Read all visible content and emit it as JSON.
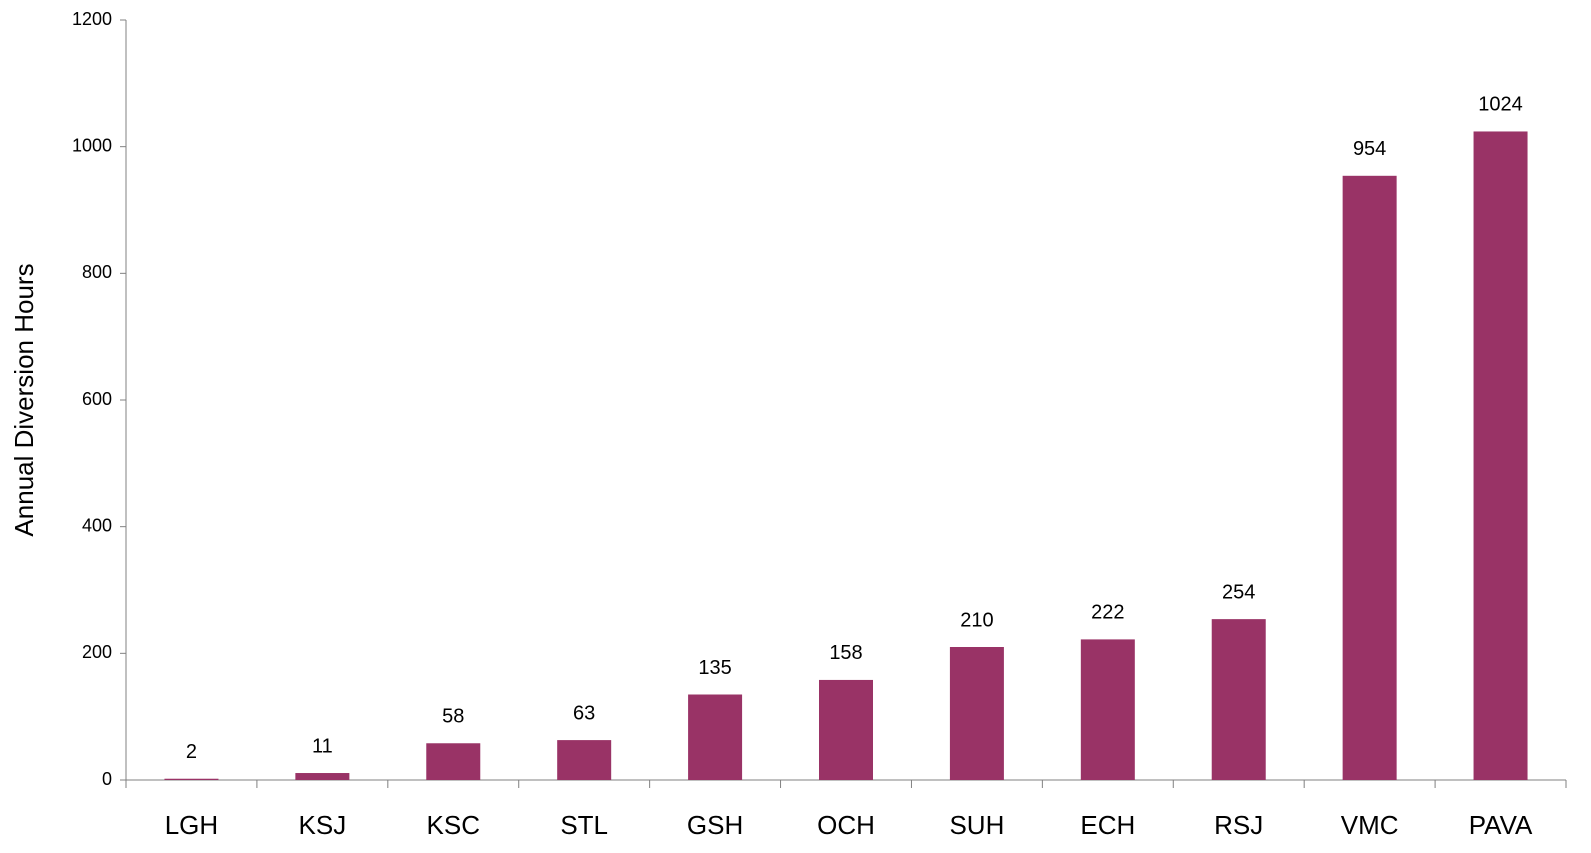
{
  "chart_data": {
    "type": "bar",
    "y_label": "Annual Diversion Hours",
    "categories": [
      "LGH",
      "KSJ",
      "KSC",
      "STL",
      "GSH",
      "OCH",
      "SUH",
      "ECH",
      "RSJ",
      "VMC",
      "PAVA"
    ],
    "values": [
      2,
      11,
      58,
      63,
      135,
      158,
      210,
      222,
      254,
      954,
      1024
    ],
    "color": "#993366",
    "ylim": [
      0,
      1200
    ],
    "yticks": [
      0,
      200,
      400,
      600,
      800,
      1000,
      1200
    ],
    "grid": false,
    "data_labels": true
  }
}
